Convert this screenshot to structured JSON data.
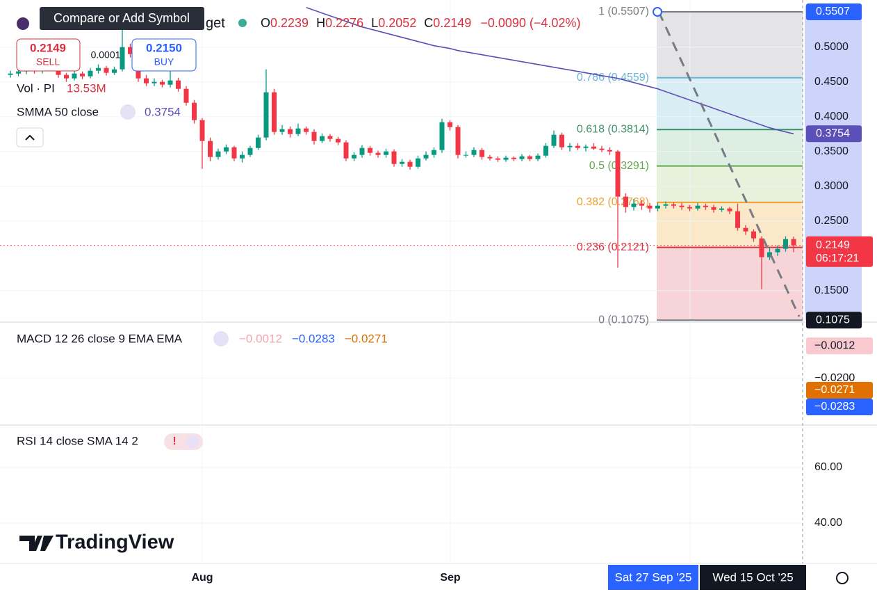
{
  "header": {
    "tooltip": "Compare or Add Symbol",
    "symbol_tail": "get",
    "ohlc": [
      {
        "key": "O",
        "value": "0.2239"
      },
      {
        "key": "H",
        "value": "0.2276"
      },
      {
        "key": "L",
        "value": "0.2052"
      },
      {
        "key": "C",
        "value": "0.2149"
      }
    ],
    "change": "−0.0090 (−4.02%)",
    "sell": {
      "price": "0.2149",
      "label": "SELL"
    },
    "spread": "0.0001",
    "buy": {
      "price": "0.2150",
      "label": "BUY"
    }
  },
  "indicators": {
    "volume": {
      "label": "Vol · PI",
      "value": "13.53M"
    },
    "smma": {
      "label": "SMMA 50 close",
      "value": "0.3754"
    }
  },
  "price_chart": {
    "ylim": [
      0.1057,
      0.5677
    ],
    "yticks": [
      {
        "value": 0.5,
        "label": "0.5000"
      },
      {
        "value": 0.45,
        "label": "0.4500"
      },
      {
        "value": 0.4,
        "label": "0.4000"
      },
      {
        "value": 0.35,
        "label": "0.3500"
      },
      {
        "value": 0.3,
        "label": "0.3000"
      },
      {
        "value": 0.25,
        "label": "0.2500"
      },
      {
        "value": 0.15,
        "label": "0.1500"
      }
    ],
    "up_color": "#089981",
    "down_color": "#f23645",
    "smma_color": "#5b4fb8",
    "candles": [
      [
        0.46,
        0.466,
        0.456,
        0.462
      ],
      [
        0.462,
        0.468,
        0.458,
        0.465
      ],
      [
        0.465,
        0.472,
        0.461,
        0.468
      ],
      [
        0.468,
        0.471,
        0.462,
        0.466
      ],
      [
        0.466,
        0.474,
        0.462,
        0.47
      ],
      [
        0.47,
        0.478,
        0.466,
        0.472
      ],
      [
        0.472,
        0.475,
        0.456,
        0.46
      ],
      [
        0.46,
        0.463,
        0.45,
        0.455
      ],
      [
        0.455,
        0.466,
        0.452,
        0.462
      ],
      [
        0.462,
        0.465,
        0.454,
        0.458
      ],
      [
        0.458,
        0.47,
        0.455,
        0.466
      ],
      [
        0.466,
        0.475,
        0.462,
        0.47
      ],
      [
        0.47,
        0.473,
        0.459,
        0.463
      ],
      [
        0.463,
        0.472,
        0.46,
        0.468
      ],
      [
        0.468,
        0.53,
        0.465,
        0.5
      ],
      [
        0.5,
        0.505,
        0.485,
        0.49
      ],
      [
        0.49,
        0.495,
        0.45,
        0.455
      ],
      [
        0.455,
        0.46,
        0.444,
        0.448
      ],
      [
        0.448,
        0.455,
        0.444,
        0.45
      ],
      [
        0.45,
        0.453,
        0.442,
        0.446
      ],
      [
        0.446,
        0.47,
        0.442,
        0.452
      ],
      [
        0.452,
        0.456,
        0.436,
        0.44
      ],
      [
        0.44,
        0.444,
        0.416,
        0.42
      ],
      [
        0.42,
        0.424,
        0.39,
        0.395
      ],
      [
        0.395,
        0.398,
        0.325,
        0.365
      ],
      [
        0.365,
        0.37,
        0.336,
        0.342
      ],
      [
        0.342,
        0.354,
        0.338,
        0.35
      ],
      [
        0.35,
        0.36,
        0.346,
        0.356
      ],
      [
        0.356,
        0.358,
        0.336,
        0.34
      ],
      [
        0.34,
        0.35,
        0.334,
        0.345
      ],
      [
        0.345,
        0.358,
        0.342,
        0.355
      ],
      [
        0.355,
        0.374,
        0.352,
        0.37
      ],
      [
        0.37,
        0.468,
        0.366,
        0.435
      ],
      [
        0.435,
        0.44,
        0.374,
        0.378
      ],
      [
        0.378,
        0.388,
        0.374,
        0.382
      ],
      [
        0.382,
        0.386,
        0.37,
        0.375
      ],
      [
        0.375,
        0.39,
        0.372,
        0.383
      ],
      [
        0.383,
        0.386,
        0.374,
        0.378
      ],
      [
        0.378,
        0.382,
        0.36,
        0.365
      ],
      [
        0.365,
        0.376,
        0.362,
        0.372
      ],
      [
        0.372,
        0.375,
        0.364,
        0.368
      ],
      [
        0.368,
        0.371,
        0.359,
        0.363
      ],
      [
        0.363,
        0.366,
        0.336,
        0.34
      ],
      [
        0.34,
        0.349,
        0.336,
        0.345
      ],
      [
        0.345,
        0.359,
        0.341,
        0.355
      ],
      [
        0.355,
        0.358,
        0.344,
        0.348
      ],
      [
        0.348,
        0.351,
        0.341,
        0.345
      ],
      [
        0.345,
        0.354,
        0.341,
        0.35
      ],
      [
        0.35,
        0.353,
        0.328,
        0.332
      ],
      [
        0.332,
        0.339,
        0.328,
        0.335
      ],
      [
        0.335,
        0.338,
        0.324,
        0.328
      ],
      [
        0.328,
        0.344,
        0.325,
        0.34
      ],
      [
        0.34,
        0.35,
        0.337,
        0.345
      ],
      [
        0.345,
        0.356,
        0.341,
        0.352
      ],
      [
        0.352,
        0.397,
        0.348,
        0.392
      ],
      [
        0.392,
        0.395,
        0.38,
        0.385
      ],
      [
        0.385,
        0.388,
        0.34,
        0.345
      ],
      [
        0.345,
        0.35,
        0.341,
        0.345
      ],
      [
        0.345,
        0.356,
        0.342,
        0.352
      ],
      [
        0.352,
        0.355,
        0.338,
        0.342
      ],
      [
        0.342,
        0.345,
        0.337,
        0.34
      ],
      [
        0.34,
        0.343,
        0.335,
        0.338
      ],
      [
        0.338,
        0.344,
        0.335,
        0.341
      ],
      [
        0.341,
        0.343,
        0.336,
        0.339
      ],
      [
        0.339,
        0.346,
        0.336,
        0.343
      ],
      [
        0.343,
        0.345,
        0.336,
        0.339
      ],
      [
        0.339,
        0.347,
        0.336,
        0.344
      ],
      [
        0.344,
        0.362,
        0.341,
        0.358
      ],
      [
        0.358,
        0.38,
        0.355,
        0.374
      ],
      [
        0.374,
        0.377,
        0.352,
        0.356
      ],
      [
        0.356,
        0.362,
        0.35,
        0.358
      ],
      [
        0.358,
        0.362,
        0.352,
        0.355
      ],
      [
        0.355,
        0.36,
        0.35,
        0.357
      ],
      [
        0.357,
        0.362,
        0.352,
        0.354
      ],
      [
        0.354,
        0.358,
        0.349,
        0.352
      ],
      [
        0.352,
        0.356,
        0.345,
        0.35
      ],
      [
        0.35,
        0.352,
        0.183,
        0.285
      ],
      [
        0.285,
        0.29,
        0.262,
        0.27
      ],
      [
        0.27,
        0.282,
        0.265,
        0.275
      ],
      [
        0.275,
        0.28,
        0.266,
        0.272
      ],
      [
        0.272,
        0.276,
        0.262,
        0.268
      ],
      [
        0.268,
        0.276,
        0.264,
        0.272
      ],
      [
        0.272,
        0.278,
        0.268,
        0.274
      ],
      [
        0.274,
        0.277,
        0.268,
        0.272
      ],
      [
        0.272,
        0.276,
        0.266,
        0.27
      ],
      [
        0.27,
        0.273,
        0.264,
        0.268
      ],
      [
        0.268,
        0.276,
        0.265,
        0.272
      ],
      [
        0.272,
        0.275,
        0.266,
        0.27
      ],
      [
        0.27,
        0.273,
        0.262,
        0.266
      ],
      [
        0.266,
        0.271,
        0.263,
        0.268
      ],
      [
        0.268,
        0.27,
        0.26,
        0.264
      ],
      [
        0.264,
        0.275,
        0.236,
        0.24
      ],
      [
        0.24,
        0.244,
        0.23,
        0.235
      ],
      [
        0.235,
        0.238,
        0.22,
        0.225
      ],
      [
        0.225,
        0.228,
        0.152,
        0.198
      ],
      [
        0.198,
        0.212,
        0.194,
        0.205
      ],
      [
        0.205,
        0.215,
        0.2,
        0.21
      ],
      [
        0.21,
        0.228,
        0.206,
        0.2239
      ],
      [
        0.2239,
        0.2276,
        0.2052,
        0.2149
      ]
    ],
    "smma": [
      null,
      null,
      null,
      null,
      null,
      null,
      null,
      null,
      null,
      null,
      null,
      null,
      null,
      null,
      null,
      null,
      null,
      null,
      null,
      null,
      null,
      null,
      null,
      null,
      null,
      null,
      null,
      null,
      null,
      null,
      null,
      null,
      null,
      null,
      null,
      null,
      null,
      0.557,
      0.553,
      0.549,
      0.545,
      0.541,
      0.537,
      0.533,
      0.529,
      0.526,
      0.523,
      0.52,
      0.517,
      0.514,
      0.511,
      0.508,
      0.505,
      0.502,
      0.5,
      0.498,
      0.495,
      0.493,
      0.491,
      0.489,
      0.487,
      0.485,
      0.483,
      0.481,
      0.479,
      0.477,
      0.475,
      0.473,
      0.471,
      0.469,
      0.467,
      0.465,
      0.463,
      0.461,
      0.459,
      0.457,
      0.455,
      0.452,
      0.449,
      0.446,
      0.443,
      0.44,
      0.436,
      0.432,
      0.428,
      0.424,
      0.42,
      0.416,
      0.412,
      0.408,
      0.404,
      0.4,
      0.396,
      0.392,
      0.388,
      0.384,
      0.381,
      0.378,
      0.3754
    ],
    "last_price": {
      "value": 0.2149,
      "label": "0.2149",
      "countdown": "06:17:21"
    },
    "markers": [
      {
        "value": 0.5507,
        "label": "0.5507",
        "color": "#2962ff"
      },
      {
        "value": 0.3754,
        "label": "0.3754",
        "color": "#5b4fb8"
      },
      {
        "value": 0.1075,
        "label": "0.1075",
        "color": "#131722"
      }
    ],
    "fib": [
      {
        "value": 0.5507,
        "label": "1 (0.5507)",
        "color": "#787b86",
        "fill": "#e4e4e6"
      },
      {
        "value": 0.4559,
        "label": "0.786 (0.4559)",
        "color": "#64b5d6",
        "fill": "#d9eef4"
      },
      {
        "value": 0.3814,
        "label": "0.618 (0.3814)",
        "color": "#3d8f6b",
        "fill": "#ddefe3"
      },
      {
        "value": 0.3291,
        "label": "0.5 (0.3291)",
        "color": "#63a84f",
        "fill": "#e6f2dc"
      },
      {
        "value": 0.2768,
        "label": "0.382 (0.2768)",
        "color": "#f0a030",
        "fill": "#fbe8c9"
      },
      {
        "value": 0.2121,
        "label": "0.236 (0.2121)",
        "color": "#d9303f",
        "fill": "#f7d4d7"
      },
      {
        "value": 0.1075,
        "label": "0 (0.1075)",
        "color": "#787b86"
      }
    ]
  },
  "macd": {
    "title": "MACD 12 26 close 9 EMA EMA",
    "values": [
      {
        "text": "−0.0012",
        "color": "#f5a3ad"
      },
      {
        "text": "−0.0283",
        "color": "#2962ff"
      },
      {
        "text": "−0.0271",
        "color": "#e07000"
      }
    ],
    "ylim": [
      -0.0474,
      0.0119
    ],
    "yticks": [
      {
        "value": -0.02,
        "label": "−0.0200"
      }
    ],
    "markers": [
      {
        "value": -0.0012,
        "label": "−0.0012",
        "color": "#f8c9cf",
        "text_color": "#131722"
      },
      {
        "value": -0.0271,
        "label": "−0.0271",
        "color": "#e07000",
        "text_color": "#ffffff"
      },
      {
        "value": -0.0283,
        "label": "−0.0283",
        "color": "#2962ff",
        "text_color": "#ffffff"
      }
    ]
  },
  "rsi": {
    "title": "RSI 14 close SMA 14 2",
    "ylim": [
      25,
      75
    ],
    "yticks": [
      {
        "value": 60,
        "label": "60.00"
      },
      {
        "value": 40,
        "label": "40.00"
      }
    ]
  },
  "time_axis": {
    "labels": [
      "Aug",
      "Sep"
    ],
    "crosshair": [
      "Sat 27 Sep '25",
      "Wed 15 Oct '25"
    ]
  },
  "logo": "TradingView"
}
